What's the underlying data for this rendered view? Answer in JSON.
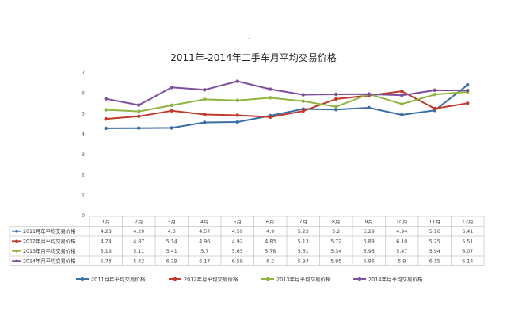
{
  "chart_data": {
    "type": "line",
    "title": "2011年-2014年二手车月平均交易价格",
    "categories": [
      "1月",
      "2月",
      "3月",
      "4月",
      "5月",
      "6月",
      "7月",
      "8月",
      "9月",
      "10月",
      "11月",
      "12月"
    ],
    "ylim": [
      0,
      7
    ],
    "yticks": [
      0,
      1,
      2,
      3,
      4,
      5,
      6,
      7
    ],
    "grid": false,
    "legend_position": "bottom",
    "series": [
      {
        "name": "2011月年平均交易价格",
        "color": "#3a6ea5",
        "labels": [
          "4.28",
          "4.29",
          "4.3",
          "4.57",
          "4.59",
          "4.9",
          "5.23",
          "5.2",
          "5.29",
          "4.94",
          "5.16",
          "6.41"
        ],
        "values": [
          4.28,
          4.29,
          4.3,
          4.57,
          4.59,
          4.9,
          5.23,
          5.2,
          5.29,
          4.94,
          5.16,
          6.41
        ]
      },
      {
        "name": "2012年月平均交易价格",
        "color": "#c0392b",
        "labels": [
          "4.74",
          "4.87",
          "5.14",
          "4.96",
          "4.92",
          "4.83",
          "5.13",
          "5.72",
          "5.89",
          "6.10",
          "5.25",
          "5.51"
        ],
        "values": [
          4.74,
          4.87,
          5.14,
          4.96,
          4.92,
          4.83,
          5.13,
          5.72,
          5.89,
          6.1,
          5.25,
          5.51
        ]
      },
      {
        "name": "2013年月平均交易价格",
        "color": "#8db53f",
        "labels": [
          "5.19",
          "5.11",
          "5.41",
          "5.7",
          "5.65",
          "5.78",
          "5.61",
          "5.34",
          "5.96",
          "5.47",
          "5.94",
          "6.07"
        ],
        "values": [
          5.19,
          5.11,
          5.41,
          5.7,
          5.65,
          5.78,
          5.61,
          5.34,
          5.96,
          5.47,
          5.94,
          6.07
        ]
      },
      {
        "name": "2014年月平均交易价格",
        "color": "#7d4f9e",
        "labels": [
          "5.73",
          "5.42",
          "6.29",
          "6.17",
          "6.59",
          "6.2",
          "5.93",
          "5.95",
          "5.96",
          "5.9",
          "6.15",
          "6.14"
        ],
        "values": [
          5.73,
          5.42,
          6.29,
          6.17,
          6.59,
          6.2,
          5.93,
          5.95,
          5.96,
          5.9,
          6.15,
          6.14
        ]
      }
    ]
  }
}
